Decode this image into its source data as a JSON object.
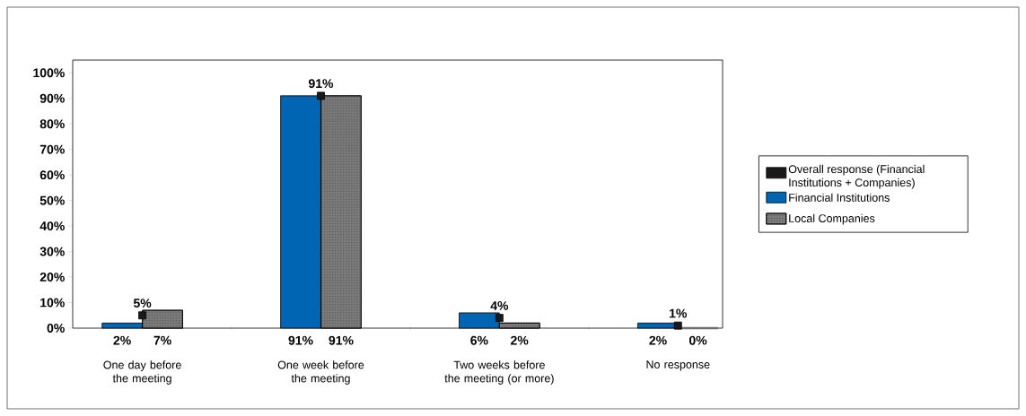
{
  "chart_data": {
    "type": "bar",
    "categories": [
      "One day before the meeting",
      "One week before the meeting",
      "Two weeks before the meeting (or more)",
      "No response"
    ],
    "series": [
      {
        "name": "Overall response (Financial Institutions + Companies)",
        "type": "scatter",
        "marker": "square",
        "color": "#1a1a1a",
        "values": [
          5,
          91,
          4,
          1
        ],
        "value_labels": [
          "5%",
          "91%",
          "4%",
          "1%"
        ]
      },
      {
        "name": "Financial Institutions",
        "color": "#0066b3",
        "values": [
          2,
          91,
          6,
          2
        ],
        "value_labels": [
          "2%",
          "91%",
          "6%",
          "2%"
        ]
      },
      {
        "name": "Local Companies",
        "color": "#6e6e6e",
        "values": [
          7,
          91,
          2,
          0
        ],
        "value_labels": [
          "7%",
          "91%",
          "2%",
          "0%"
        ]
      }
    ],
    "ylim": [
      0,
      105
    ],
    "yticks": [
      {
        "value": 0,
        "label": "0%"
      },
      {
        "value": 10,
        "label": "10%"
      },
      {
        "value": 20,
        "label": "20%"
      },
      {
        "value": 30,
        "label": "30%"
      },
      {
        "value": 40,
        "label": "40%"
      },
      {
        "value": 50,
        "label": "50%"
      },
      {
        "value": 60,
        "label": "60%"
      },
      {
        "value": 70,
        "label": "70%"
      },
      {
        "value": 80,
        "label": "80%"
      },
      {
        "value": 90,
        "label": "90%"
      },
      {
        "value": 100,
        "label": "100%"
      }
    ],
    "grid": false,
    "legend": "right"
  }
}
